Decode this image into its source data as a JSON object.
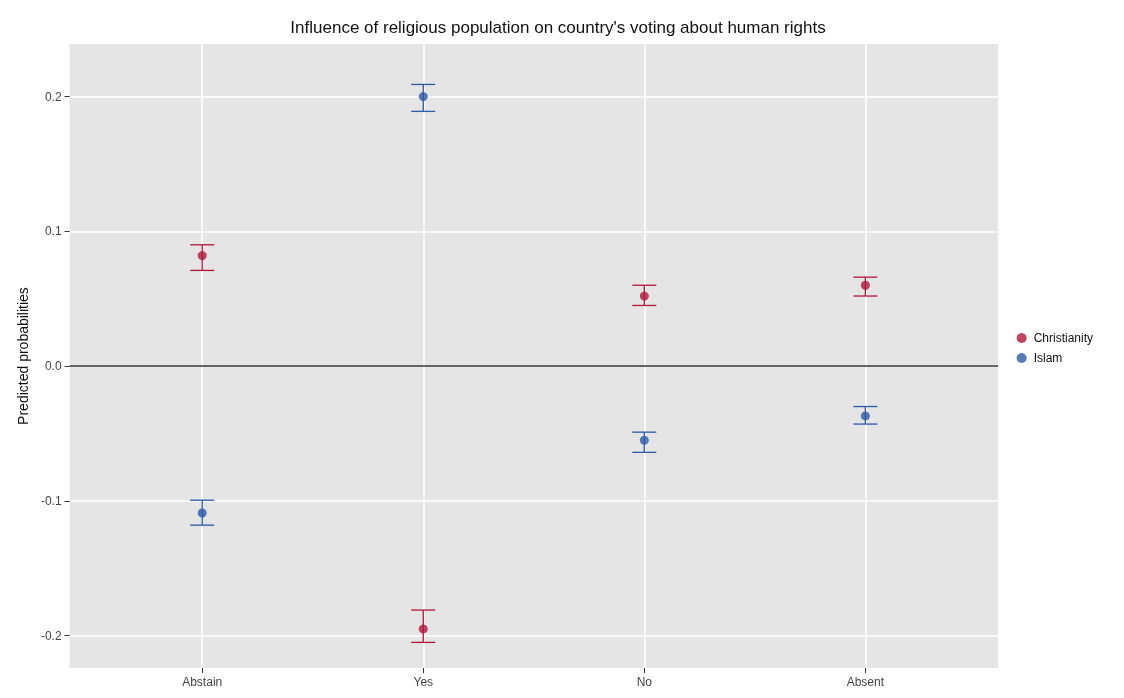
{
  "chart_data": {
    "type": "scatter",
    "title": "Influence of religious population on country's voting about human rights",
    "ylabel": "Predicted probabilities",
    "categories": [
      "Abstain",
      "Yes",
      "No",
      "Absent"
    ],
    "series": [
      {
        "name": "Christianity",
        "color": "#b0173a",
        "values": [
          0.082,
          -0.195,
          0.052,
          0.06
        ],
        "errors": [
          [
            0.071,
            0.09
          ],
          [
            -0.205,
            -0.181
          ],
          [
            0.045,
            0.06
          ],
          [
            0.052,
            0.066
          ]
        ]
      },
      {
        "name": "Islam",
        "color": "#2a5aa8",
        "values": [
          -0.109,
          0.2,
          -0.055,
          -0.037
        ],
        "errors": [
          [
            -0.118,
            -0.0995
          ],
          [
            0.189,
            0.209
          ],
          [
            -0.064,
            -0.049
          ],
          [
            -0.043,
            -0.03
          ]
        ]
      }
    ],
    "ylim": [
      -0.224,
      0.239
    ],
    "yticks": [
      -0.2,
      -0.1,
      {
        "value": 0,
        "label": "0.0"
      },
      0.1,
      0.2
    ],
    "ref_lines": [
      {
        "axis": "y",
        "value": 0,
        "color": "#333333"
      }
    ],
    "grid": true,
    "legend": "right",
    "marker": "circle"
  }
}
